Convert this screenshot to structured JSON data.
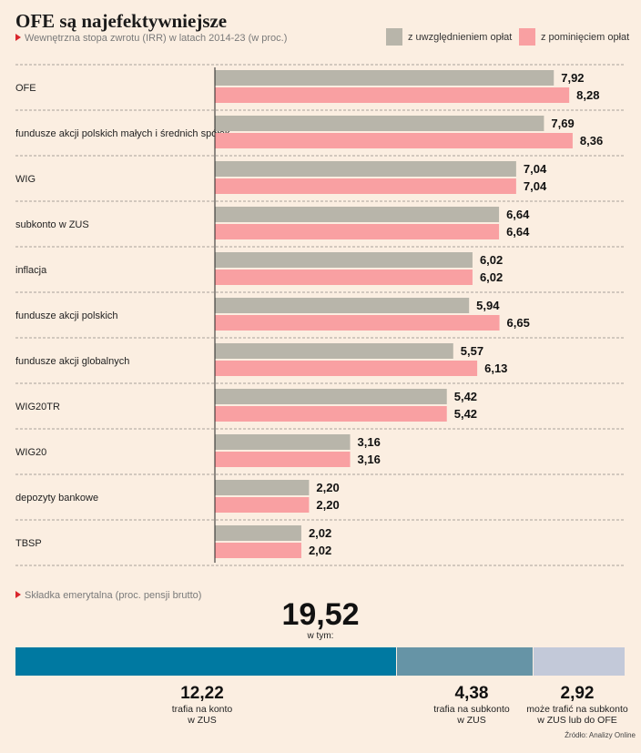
{
  "header": {
    "title": "OFE są najefektywniejsze",
    "subtitle": "Wewnętrzna stopa zwrotu (IRR) w latach 2014-23 (w proc.)"
  },
  "colors": {
    "with_fees": "#b8b5aa",
    "without_fees": "#f9a0a2",
    "seg1": "#0079a1",
    "seg2": "#6694a6",
    "seg3": "#c3c9d9"
  },
  "chart_data": [
    {
      "type": "bar",
      "orientation": "horizontal",
      "title": "OFE są najefektywniejsze",
      "subtitle": "Wewnętrzna stopa zwrotu (IRR) w latach 2014-23 (w proc.)",
      "legend_position": "top-right",
      "categories": [
        "OFE",
        "fundusze akcji polskich małych i średnich spółek",
        "WIG",
        "subkonto w ZUS",
        "inflacja",
        "fundusze akcji polskich",
        "fundusze akcji globalnych",
        "WIG20TR",
        "WIG20",
        "depozyty bankowe",
        "TBSP"
      ],
      "series": [
        {
          "name": "z uwzględnieniem opłat",
          "color": "#b8b5aa",
          "values": [
            7.92,
            7.69,
            7.04,
            6.64,
            6.02,
            5.94,
            5.57,
            5.42,
            3.16,
            2.2,
            2.02
          ],
          "labels": [
            "7,92",
            "7,69",
            "7,04",
            "6,64",
            "6,02",
            "5,94",
            "5,57",
            "5,42",
            "3,16",
            "2,20",
            "2,02"
          ]
        },
        {
          "name": "z pominięciem opłat",
          "color": "#f9a0a2",
          "values": [
            8.28,
            8.36,
            7.04,
            6.64,
            6.02,
            6.65,
            6.13,
            5.42,
            3.16,
            2.2,
            2.02
          ],
          "labels": [
            "8,28",
            "8,36",
            "7,04",
            "6,64",
            "6,02",
            "6,65",
            "6,13",
            "5,42",
            "3,16",
            "2,20",
            "2,02"
          ]
        }
      ],
      "xlim": [
        0,
        9
      ],
      "grid": "dashed row separators"
    },
    {
      "type": "bar",
      "orientation": "stacked-horizontal",
      "title": "Składka emerytalna (proc. pensji brutto)",
      "total": 19.52,
      "total_label": "19,52",
      "total_sub": "w tym:",
      "segments": [
        {
          "value": 12.22,
          "label": "12,22",
          "desc": "trafia na konto\nw ZUS",
          "color": "#0079a1"
        },
        {
          "value": 4.38,
          "label": "4,38",
          "desc": "trafia na subkonto\nw ZUS",
          "color": "#6694a6"
        },
        {
          "value": 2.92,
          "label": "2,92",
          "desc": "może trafić na subkonto\nw ZUS lub do OFE",
          "color": "#c3c9d9"
        }
      ]
    }
  ],
  "source": "Źródło: Analizy Online"
}
